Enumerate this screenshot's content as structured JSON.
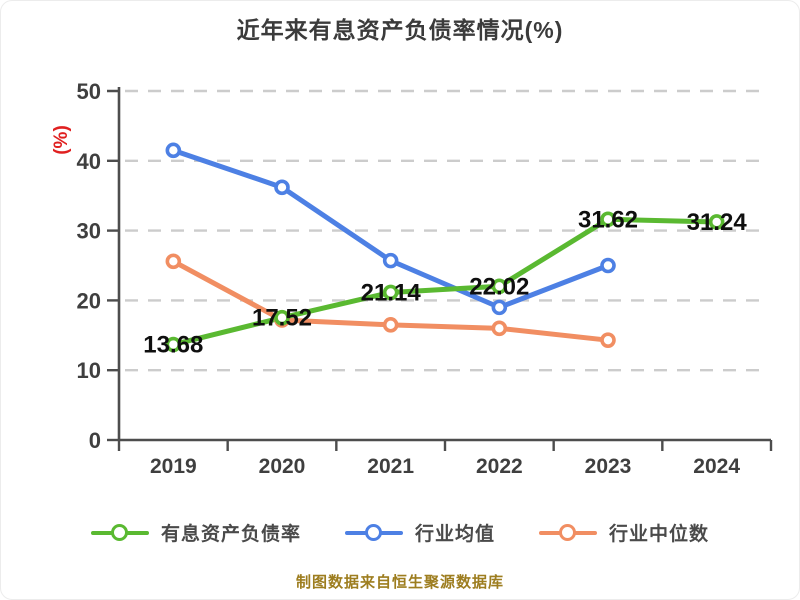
{
  "title": "近年来有息资产负债率情况(%)",
  "y_axis_unit": "(%)",
  "footer": "制图数据来自恒生聚源数据库",
  "colors": {
    "title_text": "#3b3b3b",
    "axis": "#4d4d4d",
    "tick_text": "#3f3f3f",
    "grid": "#cccccc",
    "y_unit_red": "#e02020",
    "data_label": "#0f0f0f",
    "legend_text": "#4a4a4a",
    "footer_text": "#9d7d1f",
    "series_company_green": "#5ab931",
    "series_industry_avg_blue": "#4d80e4",
    "series_industry_median_orange": "#f18e62"
  },
  "chart_data": {
    "type": "line",
    "title": "近年来有息资产负债率情况(%)",
    "categories": [
      "2019",
      "2020",
      "2021",
      "2022",
      "2023",
      "2024"
    ],
    "series": [
      {
        "id": "interest-bearing-debt-ratio",
        "name": "有息资产负债率",
        "color": "#5ab931",
        "values": [
          13.68,
          17.52,
          21.14,
          22.02,
          31.62,
          31.24
        ],
        "point_labels": [
          "13.68",
          "17.52",
          "21.14",
          "22.02",
          "31.62",
          "31.24"
        ]
      },
      {
        "id": "industry-average",
        "name": "行业均值",
        "color": "#4d80e4",
        "values": [
          41.5,
          36.2,
          25.7,
          19.0,
          25.0,
          null
        ],
        "point_labels": null
      },
      {
        "id": "industry-median",
        "name": "行业中位数",
        "color": "#f18e62",
        "values": [
          25.6,
          17.2,
          16.5,
          16.0,
          14.3,
          null
        ],
        "point_labels": null
      }
    ],
    "xlabel": "",
    "ylabel": "(%)",
    "ylim": [
      0,
      50
    ],
    "yticks": [
      0,
      10,
      20,
      30,
      40,
      50
    ],
    "grid": "horizontal-dashed",
    "legend_position": "bottom"
  },
  "legend": {
    "items": [
      {
        "label": "有息资产负债率",
        "color": "#5ab931"
      },
      {
        "label": "行业均值",
        "color": "#4d80e4"
      },
      {
        "label": "行业中位数",
        "color": "#f18e62"
      }
    ]
  }
}
